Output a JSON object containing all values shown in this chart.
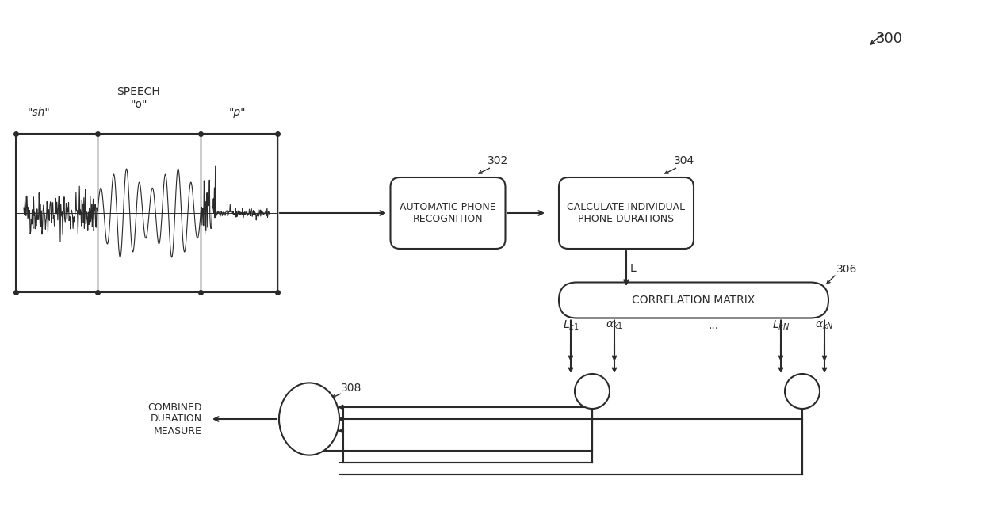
{
  "bg_color": "#f5f5f0",
  "line_color": "#2a2a2a",
  "fig_label": "300",
  "box302_label": "AUTOMATIC PHONE\nRECOGNITION",
  "box304_label": "CALCULATE INDIVIDUAL\nPHONE DURATIONS",
  "box306_label": "CORRELATION MATRIX",
  "box308_label": "308",
  "combined_label": "COMBINED\nDURATION\nMEASURE",
  "speech_label": "SPEECH\n\"o\"",
  "sh_label": "\"sh\"",
  "p_label": "\"p\"",
  "L_label": "L",
  "labels_below_matrix": [
    "Lₖ₁",
    "αₖ₁",
    "...",
    "LₖN",
    "αₖN"
  ],
  "num302": "302",
  "num304": "304",
  "num306": "306"
}
